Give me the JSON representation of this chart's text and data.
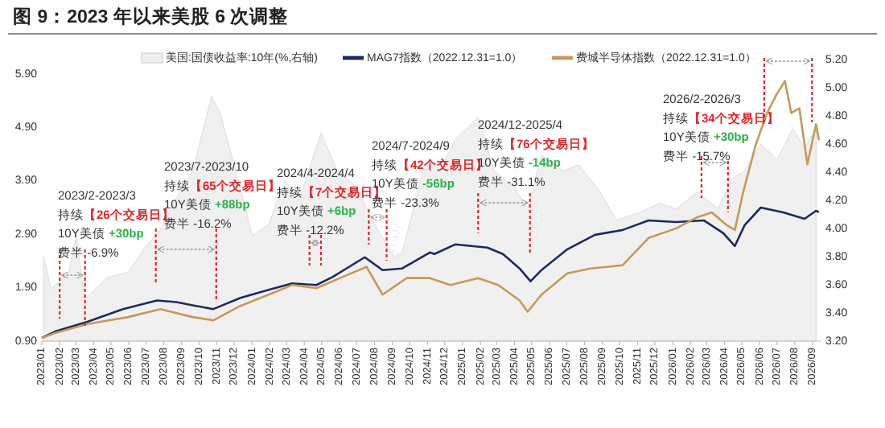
{
  "chart_data": {
    "type": "line",
    "title": "图 9：2023 年以来美股 6 次调整",
    "legend": "top",
    "xlim": [
      "2023-01-01",
      "2026-09-15"
    ],
    "xticks": [
      {
        "value": "2023-01-01",
        "label": "2023/01"
      },
      {
        "value": "2023-02-01",
        "label": "2023/02"
      },
      {
        "value": "2023-03-01",
        "label": "2023/03"
      },
      {
        "value": "2023-04-01",
        "label": "2023/04"
      },
      {
        "value": "2023-05-01",
        "label": "2023/05"
      },
      {
        "value": "2023-06-01",
        "label": "2023/06"
      },
      {
        "value": "2023-07-01",
        "label": "2023/07"
      },
      {
        "value": "2023-08-01",
        "label": "2023/08"
      },
      {
        "value": "2023-09-01",
        "label": "2023/09"
      },
      {
        "value": "2023-10-01",
        "label": "2023/10"
      },
      {
        "value": "2023-11-01",
        "label": "2023/11"
      },
      {
        "value": "2023-12-01",
        "label": "2023/12"
      },
      {
        "value": "2024-01-01",
        "label": "2024/01"
      },
      {
        "value": "2024-02-01",
        "label": "2024/02"
      },
      {
        "value": "2024-03-01",
        "label": "2024/03"
      },
      {
        "value": "2024-04-01",
        "label": "2024/04"
      },
      {
        "value": "2024-05-01",
        "label": "2024/05"
      },
      {
        "value": "2024-06-01",
        "label": "2024/06"
      },
      {
        "value": "2024-07-01",
        "label": "2024/07"
      },
      {
        "value": "2024-08-01",
        "label": "2024/08"
      },
      {
        "value": "2024-09-01",
        "label": "2024/09"
      },
      {
        "value": "2024-10-01",
        "label": "2024/10"
      },
      {
        "value": "2024-11-01",
        "label": "2024/11"
      },
      {
        "value": "2024-12-01",
        "label": "2024/12"
      },
      {
        "value": "2025-01-01",
        "label": "2025/01"
      },
      {
        "value": "2025-02-01",
        "label": "2025/02"
      },
      {
        "value": "2025-03-01",
        "label": "2025/03"
      },
      {
        "value": "2025-04-01",
        "label": "2025/04"
      },
      {
        "value": "2025-05-01",
        "label": "2025/05"
      },
      {
        "value": "2025-06-01",
        "label": "2025/06"
      },
      {
        "value": "2025-07-01",
        "label": "2025/07"
      },
      {
        "value": "2025-08-01",
        "label": "2025/08"
      },
      {
        "value": "2025-09-01",
        "label": "2025/09"
      },
      {
        "value": "2025-10-01",
        "label": "2025/10"
      },
      {
        "value": "2025-11-01",
        "label": "2025/11"
      },
      {
        "value": "2025-12-01",
        "label": "2025/12"
      },
      {
        "value": "2026-01-01",
        "label": "2026/01"
      },
      {
        "value": "2026-02-01",
        "label": "2026/02"
      },
      {
        "value": "2026-03-01",
        "label": "2026/03"
      },
      {
        "value": "2026-04-01",
        "label": "2026/04"
      },
      {
        "value": "2026-05-01",
        "label": "2026/05"
      },
      {
        "value": "2026-06-01",
        "label": "2026/06"
      },
      {
        "value": "2026-07-01",
        "label": "2026/07"
      },
      {
        "value": "2026-08-01",
        "label": "2026/08"
      },
      {
        "value": "2026-09-01",
        "label": "2026/09"
      }
    ],
    "ylim": [
      0.9,
      5.9
    ],
    "yticks": [
      {
        "value": 0.9,
        "label": "0.90"
      },
      {
        "value": 1.9,
        "label": "1.90"
      },
      {
        "value": 2.9,
        "label": "2.90"
      },
      {
        "value": 3.9,
        "label": "3.90"
      },
      {
        "value": 4.9,
        "label": "4.90"
      },
      {
        "value": 5.9,
        "label": "5.90"
      }
    ],
    "y2lim": [
      3.2,
      5.2
    ],
    "y2ticks": [
      {
        "value": 3.2,
        "label": "3.20"
      },
      {
        "value": 3.4,
        "label": "3.40"
      },
      {
        "value": 3.6,
        "label": "3.60"
      },
      {
        "value": 3.8,
        "label": "3.80"
      },
      {
        "value": 4.0,
        "label": "4.00"
      },
      {
        "value": 4.2,
        "label": "4.20"
      },
      {
        "value": 4.4,
        "label": "4.40"
      },
      {
        "value": 4.6,
        "label": "4.60"
      },
      {
        "value": 4.8,
        "label": "4.80"
      },
      {
        "value": 5.0,
        "label": "5.00"
      },
      {
        "value": 5.2,
        "label": "5.20"
      }
    ],
    "series": [
      {
        "name": "美国:国债收益率:10年(%,右轴)",
        "type": "area",
        "axis": "y2",
        "color": "#d6d6d6",
        "x": [
          "2023-01-04",
          "2023-01-17",
          "2023-02-17",
          "2023-03-02",
          "2023-03-16",
          "2023-04-24",
          "2023-05-31",
          "2023-06-28",
          "2023-07-26",
          "2023-08-23",
          "2023-09-20",
          "2023-10-23",
          "2023-11-06",
          "2023-12-04",
          "2024-01-02",
          "2024-01-30",
          "2024-02-27",
          "2024-03-25",
          "2024-04-30",
          "2024-05-28",
          "2024-07-01",
          "2024-08-01",
          "2024-09-04",
          "2024-09-18",
          "2024-10-24",
          "2024-11-13",
          "2024-12-02",
          "2024-12-19",
          "2025-01-28",
          "2025-02-25",
          "2025-04-01",
          "2025-04-24",
          "2025-05-18",
          "2025-06-24",
          "2025-07-22",
          "2025-08-28",
          "2025-09-25",
          "2025-11-03",
          "2025-12-09",
          "2026-01-07",
          "2026-02-13",
          "2026-03-21",
          "2026-04-13",
          "2026-05-06",
          "2026-06-03",
          "2026-07-01",
          "2026-07-29",
          "2026-08-18",
          "2026-09-07"
        ],
        "values": [
          3.8,
          3.57,
          3.69,
          3.95,
          3.49,
          3.65,
          3.69,
          3.86,
          3.99,
          4.22,
          4.41,
          4.94,
          4.83,
          4.41,
          3.95,
          4.03,
          4.34,
          4.22,
          4.68,
          4.41,
          4.29,
          4.03,
          3.8,
          3.83,
          4.41,
          4.45,
          4.49,
          4.63,
          4.79,
          4.41,
          4.29,
          4.14,
          4.52,
          4.41,
          4.45,
          4.26,
          4.06,
          4.11,
          4.18,
          4.14,
          4.26,
          4.14,
          4.35,
          4.41,
          4.6,
          4.49,
          4.71,
          4.57,
          4.71
        ]
      },
      {
        "name": "MAG7指数（2022.12.31=1.0）",
        "color": "#1f2a5c",
        "x": [
          "2023-01-01",
          "2023-01-24",
          "2023-03-21",
          "2023-05-22",
          "2023-07-20",
          "2023-08-23",
          "2023-09-20",
          "2023-10-26",
          "2023-12-12",
          "2024-01-30",
          "2024-03-11",
          "2024-04-22",
          "2024-05-20",
          "2024-07-15",
          "2024-08-15",
          "2024-09-18",
          "2024-11-05",
          "2024-11-13",
          "2024-12-19",
          "2025-02-13",
          "2025-03-12",
          "2025-04-10",
          "2025-04-29",
          "2025-05-18",
          "2025-07-02",
          "2025-08-19",
          "2025-10-06",
          "2025-11-20",
          "2026-01-07",
          "2026-02-24",
          "2026-03-30",
          "2026-04-19",
          "2026-05-06",
          "2026-06-03",
          "2026-07-12",
          "2026-08-18",
          "2026-09-07",
          "2026-09-12"
        ],
        "values": [
          0.96,
          1.08,
          1.26,
          1.5,
          1.66,
          1.63,
          1.57,
          1.5,
          1.71,
          1.86,
          1.98,
          1.95,
          2.1,
          2.47,
          2.23,
          2.26,
          2.56,
          2.53,
          2.71,
          2.65,
          2.53,
          2.26,
          2.02,
          2.23,
          2.62,
          2.89,
          2.98,
          3.16,
          3.13,
          3.16,
          2.92,
          2.68,
          3.07,
          3.4,
          3.31,
          3.19,
          3.34,
          3.31
        ]
      },
      {
        "name": "费城半导体指数（2022.12.31=1.0）",
        "color": "#c49a5a",
        "x": [
          "2023-01-01",
          "2023-01-24",
          "2023-03-21",
          "2023-05-31",
          "2023-07-26",
          "2023-09-20",
          "2023-10-26",
          "2023-12-12",
          "2024-01-30",
          "2024-03-11",
          "2024-04-22",
          "2024-06-06",
          "2024-07-18",
          "2024-08-15",
          "2024-09-26",
          "2024-11-05",
          "2024-12-11",
          "2025-01-28",
          "2025-03-04",
          "2025-04-10",
          "2025-04-24",
          "2025-05-18",
          "2025-07-02",
          "2025-08-11",
          "2025-10-06",
          "2025-11-20",
          "2026-01-07",
          "2026-02-13",
          "2026-03-10",
          "2026-04-05",
          "2026-04-19",
          "2026-05-03",
          "2026-05-25",
          "2026-06-14",
          "2026-07-01",
          "2026-07-15",
          "2026-07-26",
          "2026-08-09",
          "2026-08-23",
          "2026-09-07",
          "2026-09-12"
        ],
        "values": [
          0.96,
          1.05,
          1.22,
          1.35,
          1.5,
          1.35,
          1.29,
          1.56,
          1.77,
          1.95,
          1.89,
          2.1,
          2.29,
          1.77,
          2.08,
          2.08,
          1.95,
          2.08,
          1.95,
          1.66,
          1.45,
          1.77,
          2.17,
          2.26,
          2.32,
          2.83,
          3.01,
          3.22,
          3.31,
          3.07,
          2.98,
          3.67,
          4.57,
          5.17,
          5.53,
          5.77,
          5.17,
          5.26,
          4.21,
          4.96,
          4.66
        ]
      }
    ],
    "ref_lines": [
      {
        "axis": "x",
        "value": "2023-02-01",
        "color": "#e0262b",
        "line_style": "dashed",
        "label": "2023/2-2023/3\n持续【26个交易日】\n10Y美债 +30bp\n费半 -6.9%"
      },
      {
        "axis": "x",
        "value": "2023-03-17",
        "color": "#e0262b",
        "line_style": "dashed"
      },
      {
        "axis": "x",
        "value": "2023-07-18",
        "color": "#e0262b",
        "line_style": "dashed",
        "label": "2023/7-2023/10\n持续【65个交易日】\n10Y美债 +88bp\n费半 -16.2%"
      },
      {
        "axis": "x",
        "value": "2023-10-31",
        "color": "#e0262b",
        "line_style": "dashed"
      },
      {
        "axis": "x",
        "value": "2024-04-10",
        "color": "#e0262b",
        "line_style": "dashed",
        "label": "2024/4-2024/4\n持续【7个交易日】\n10Y美债 +6bp\n费半 -12.2%"
      },
      {
        "axis": "x",
        "value": "2024-04-30",
        "color": "#e0262b",
        "line_style": "dashed"
      },
      {
        "axis": "x",
        "value": "2024-07-22",
        "color": "#e0262b",
        "line_style": "dashed",
        "label": "2024/7-2024/9\n持续【42个交易日】\n10Y美债 -56bp\n费半 -23.3%"
      },
      {
        "axis": "x",
        "value": "2024-08-22",
        "color": "#e0262b",
        "line_style": "dashed"
      },
      {
        "axis": "x",
        "value": "2025-01-28",
        "color": "#e0262b",
        "line_style": "dashed",
        "label": "2024/12-2025/4\n持续【76个交易日】\n10Y美债 -14bp\n费半 -31.1%"
      },
      {
        "axis": "x",
        "value": "2025-04-28",
        "color": "#e0262b",
        "line_style": "dashed"
      },
      {
        "axis": "x",
        "value": "2026-02-20",
        "color": "#e0262b",
        "line_style": "dashed",
        "label": "2026/2-2026/3\n持续【34个交易日】\n10Y美债 +30bp\n费半 -15.7%"
      },
      {
        "axis": "x",
        "value": "2026-04-07",
        "color": "#e0262b",
        "line_style": "dashed"
      },
      {
        "axis": "x",
        "value": "2026-06-09",
        "color": "#e0262b",
        "line_style": "dashed"
      },
      {
        "axis": "x",
        "value": "2026-08-31",
        "color": "#e0262b",
        "line_style": "dashed"
      }
    ]
  }
}
